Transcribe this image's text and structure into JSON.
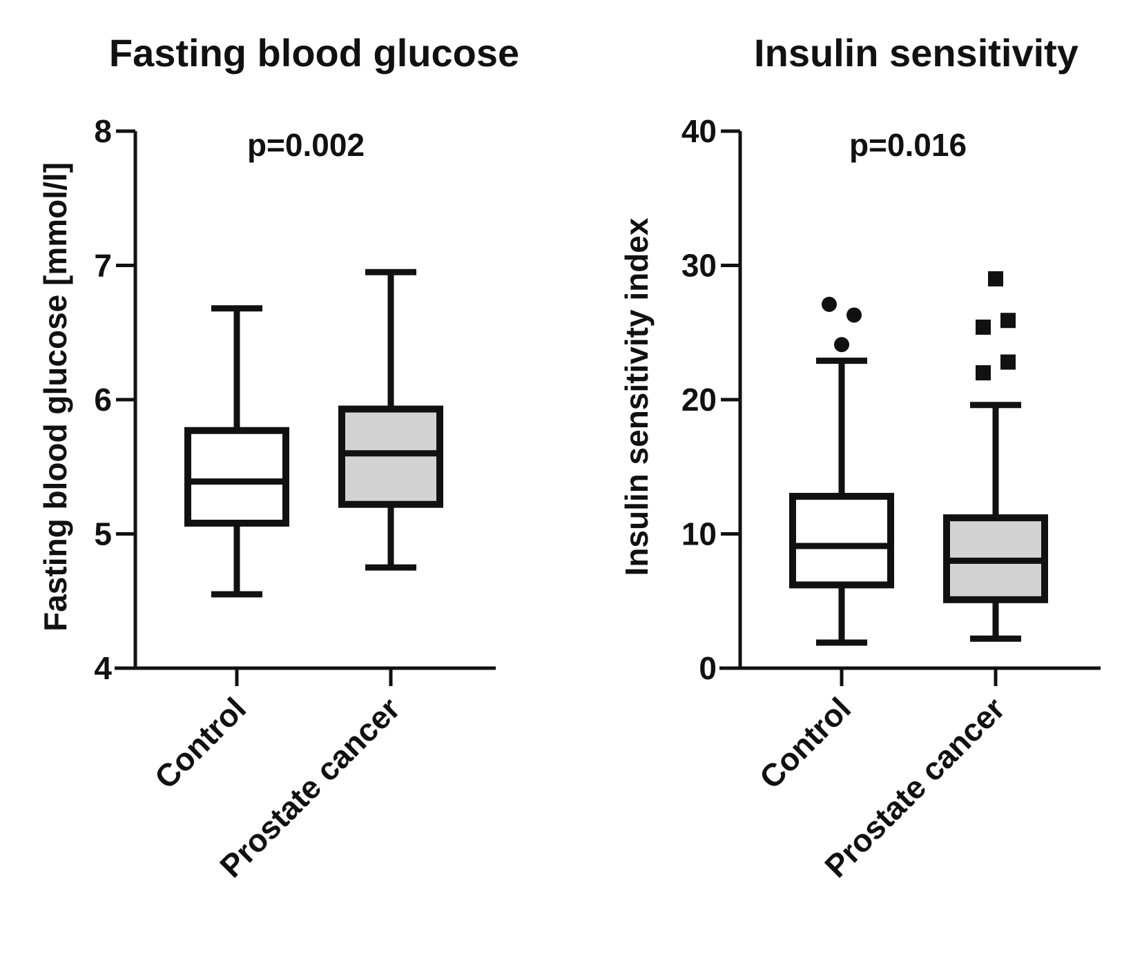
{
  "chart_data": [
    {
      "type": "box",
      "title": "Fasting blood glucose",
      "xlabel": "",
      "ylabel": "Fasting blood glucose [mmol/l]",
      "ylim": [
        4,
        8
      ],
      "yticks": [
        4,
        5,
        6,
        7,
        8
      ],
      "annotation": "p=0.002",
      "categories": [
        "Control",
        "Prostate cancer"
      ],
      "series": [
        {
          "name": "Control",
          "fill": "#ffffff",
          "whisker_low": 4.55,
          "q1": 5.08,
          "median": 5.39,
          "q3": 5.77,
          "whisker_high": 6.68,
          "outliers": [],
          "outlier_marker": "circle"
        },
        {
          "name": "Prostate cancer",
          "fill": "#d3d3d3",
          "whisker_low": 4.75,
          "q1": 5.22,
          "median": 5.6,
          "q3": 5.93,
          "whisker_high": 6.95,
          "outliers": [],
          "outlier_marker": "square"
        }
      ]
    },
    {
      "type": "box",
      "title": "Insulin sensitivity",
      "xlabel": "",
      "ylabel": "Insulin sensitivity index",
      "ylim": [
        0,
        40
      ],
      "yticks": [
        0,
        10,
        20,
        30,
        40
      ],
      "annotation": "p=0.016",
      "categories": [
        "Control",
        "Prostate cancer"
      ],
      "series": [
        {
          "name": "Control",
          "fill": "#ffffff",
          "whisker_low": 1.9,
          "q1": 6.2,
          "median": 9.1,
          "q3": 12.8,
          "whisker_high": 22.9,
          "outliers": [
            {
              "value": 27.1,
              "offset": -1
            },
            {
              "value": 26.3,
              "offset": 1
            },
            {
              "value": 24.1,
              "offset": 0
            }
          ],
          "outlier_marker": "circle"
        },
        {
          "name": "Prostate cancer",
          "fill": "#d3d3d3",
          "whisker_low": 2.2,
          "q1": 5.1,
          "median": 8.0,
          "q3": 11.2,
          "whisker_high": 19.6,
          "outliers": [
            {
              "value": 29.0,
              "offset": 0
            },
            {
              "value": 25.9,
              "offset": 1
            },
            {
              "value": 25.4,
              "offset": -1
            },
            {
              "value": 22.8,
              "offset": 1
            },
            {
              "value": 22.0,
              "offset": -1
            }
          ],
          "outlier_marker": "square"
        }
      ]
    }
  ]
}
